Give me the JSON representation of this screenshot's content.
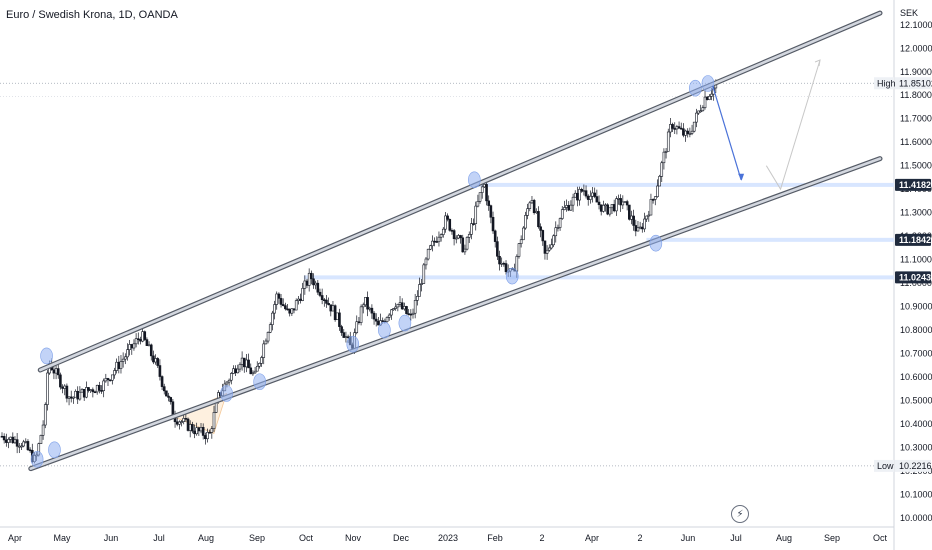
{
  "header": {
    "title": "Euro / Swedish Krona, 1D, OANDA"
  },
  "y_axis": {
    "currency": "SEK"
  },
  "colors": {
    "bull": "#131722",
    "bear": "#131722",
    "channel": "#6b6b6b",
    "touch": "#90aef0",
    "projection_down": "#4a72d8",
    "projection_up": "#c8c8c8",
    "hbar": "#d8e6ff",
    "label_bg": "#1f2a3d"
  },
  "chart_data": {
    "type": "candlestick",
    "title": "Euro / Swedish Krona, 1D, OANDA",
    "ylim": [
      9.97,
      12.18
    ],
    "y_ticks": [
      "10.00000",
      "10.10000",
      "10.20000",
      "10.30000",
      "10.40000",
      "10.50000",
      "10.60000",
      "10.70000",
      "10.80000",
      "10.90000",
      "11.00000",
      "11.10000",
      "11.20000",
      "11.30000",
      "11.40000",
      "11.50000",
      "11.60000",
      "11.70000",
      "11.80000",
      "11.90000",
      "12.00000",
      "12.10000"
    ],
    "x_ticks": [
      "Apr",
      "May",
      "Jun",
      "Jul",
      "Aug",
      "Sep",
      "Oct",
      "Nov",
      "Dec",
      "2023",
      "Feb",
      "2",
      "Apr",
      "2",
      "Jun",
      "Jul",
      "Aug",
      "Sep",
      "Oct"
    ],
    "price_anchors": [
      [
        "2022-04-01",
        10.36
      ],
      [
        "2022-04-20",
        10.32
      ],
      [
        "2022-04-28",
        10.24
      ],
      [
        "2022-05-04",
        10.44
      ],
      [
        "2022-05-06",
        10.67
      ],
      [
        "2022-05-20",
        10.51
      ],
      [
        "2022-06-10",
        10.57
      ],
      [
        "2022-06-25",
        10.7
      ],
      [
        "2022-07-04",
        10.78
      ],
      [
        "2022-07-13",
        10.66
      ],
      [
        "2022-07-25",
        10.43
      ],
      [
        "2022-08-08",
        10.37
      ],
      [
        "2022-08-16",
        10.35
      ],
      [
        "2022-08-22",
        10.52
      ],
      [
        "2022-09-05",
        10.68
      ],
      [
        "2022-09-14",
        10.6
      ],
      [
        "2022-09-28",
        10.95
      ],
      [
        "2022-10-06",
        10.86
      ],
      [
        "2022-10-19",
        11.03
      ],
      [
        "2022-11-03",
        10.88
      ],
      [
        "2022-11-14",
        10.72
      ],
      [
        "2022-11-22",
        10.93
      ],
      [
        "2022-12-01",
        10.81
      ],
      [
        "2022-12-12",
        10.92
      ],
      [
        "2022-12-22",
        10.85
      ],
      [
        "2023-01-02",
        11.13
      ],
      [
        "2023-01-13",
        11.27
      ],
      [
        "2023-01-25",
        11.14
      ],
      [
        "2023-02-06",
        11.43
      ],
      [
        "2023-02-15",
        11.11
      ],
      [
        "2023-02-24",
        11.03
      ],
      [
        "2023-03-08",
        11.38
      ],
      [
        "2023-03-17",
        11.11
      ],
      [
        "2023-03-27",
        11.3
      ],
      [
        "2023-04-10",
        11.4
      ],
      [
        "2023-04-24",
        11.31
      ],
      [
        "2023-05-05",
        11.35
      ],
      [
        "2023-05-15",
        11.21
      ],
      [
        "2023-05-25",
        11.37
      ],
      [
        "2023-06-05",
        11.68
      ],
      [
        "2023-06-15",
        11.62
      ],
      [
        "2023-06-26",
        11.79
      ],
      [
        "2023-07-03",
        11.84
      ]
    ],
    "high": {
      "label": "High",
      "value": "11.85102",
      "y": 11.85102
    },
    "low": {
      "label": "Low",
      "value": "10.22167",
      "y": 10.22167
    },
    "levels": [
      {
        "value": "11.41820",
        "y": 11.4182,
        "x_start": "2023-01-30"
      },
      {
        "value": "11.18425",
        "y": 11.18425,
        "x_start": "2023-05-20"
      },
      {
        "value": "11.02438",
        "y": 11.02438,
        "x_start": "2022-10-15"
      }
    ],
    "channel_upper": [
      [
        "2022-05-01",
        10.63
      ],
      [
        "2023-10-15",
        12.15
      ]
    ],
    "channel_lower": [
      [
        "2022-04-25",
        10.21
      ],
      [
        "2023-10-15",
        11.53
      ]
    ],
    "touches": [
      [
        "2022-04-29",
        10.25
      ],
      [
        "2022-05-10",
        10.29
      ],
      [
        "2022-05-05",
        10.69
      ],
      [
        "2022-08-27",
        10.53
      ],
      [
        "2022-09-17",
        10.58
      ],
      [
        "2022-11-15",
        10.74
      ],
      [
        "2022-12-05",
        10.8
      ],
      [
        "2022-12-18",
        10.83
      ],
      [
        "2023-01-31",
        11.44
      ],
      [
        "2023-02-24",
        11.03
      ],
      [
        "2023-05-26",
        11.17
      ],
      [
        "2023-06-20",
        11.83
      ],
      [
        "2023-06-28",
        11.85
      ]
    ],
    "triangle": [
      [
        "2022-07-25",
        10.43
      ],
      [
        "2022-08-19",
        10.36
      ],
      [
        "2022-08-27",
        10.53
      ]
    ],
    "projection_down": [
      [
        "2023-07-01",
        11.84
      ],
      [
        "2023-07-19",
        11.44
      ]
    ],
    "projection_up": [
      [
        "2023-08-04",
        11.5
      ],
      [
        "2023-08-13",
        11.4
      ],
      [
        "2023-09-07",
        11.95
      ]
    ]
  }
}
